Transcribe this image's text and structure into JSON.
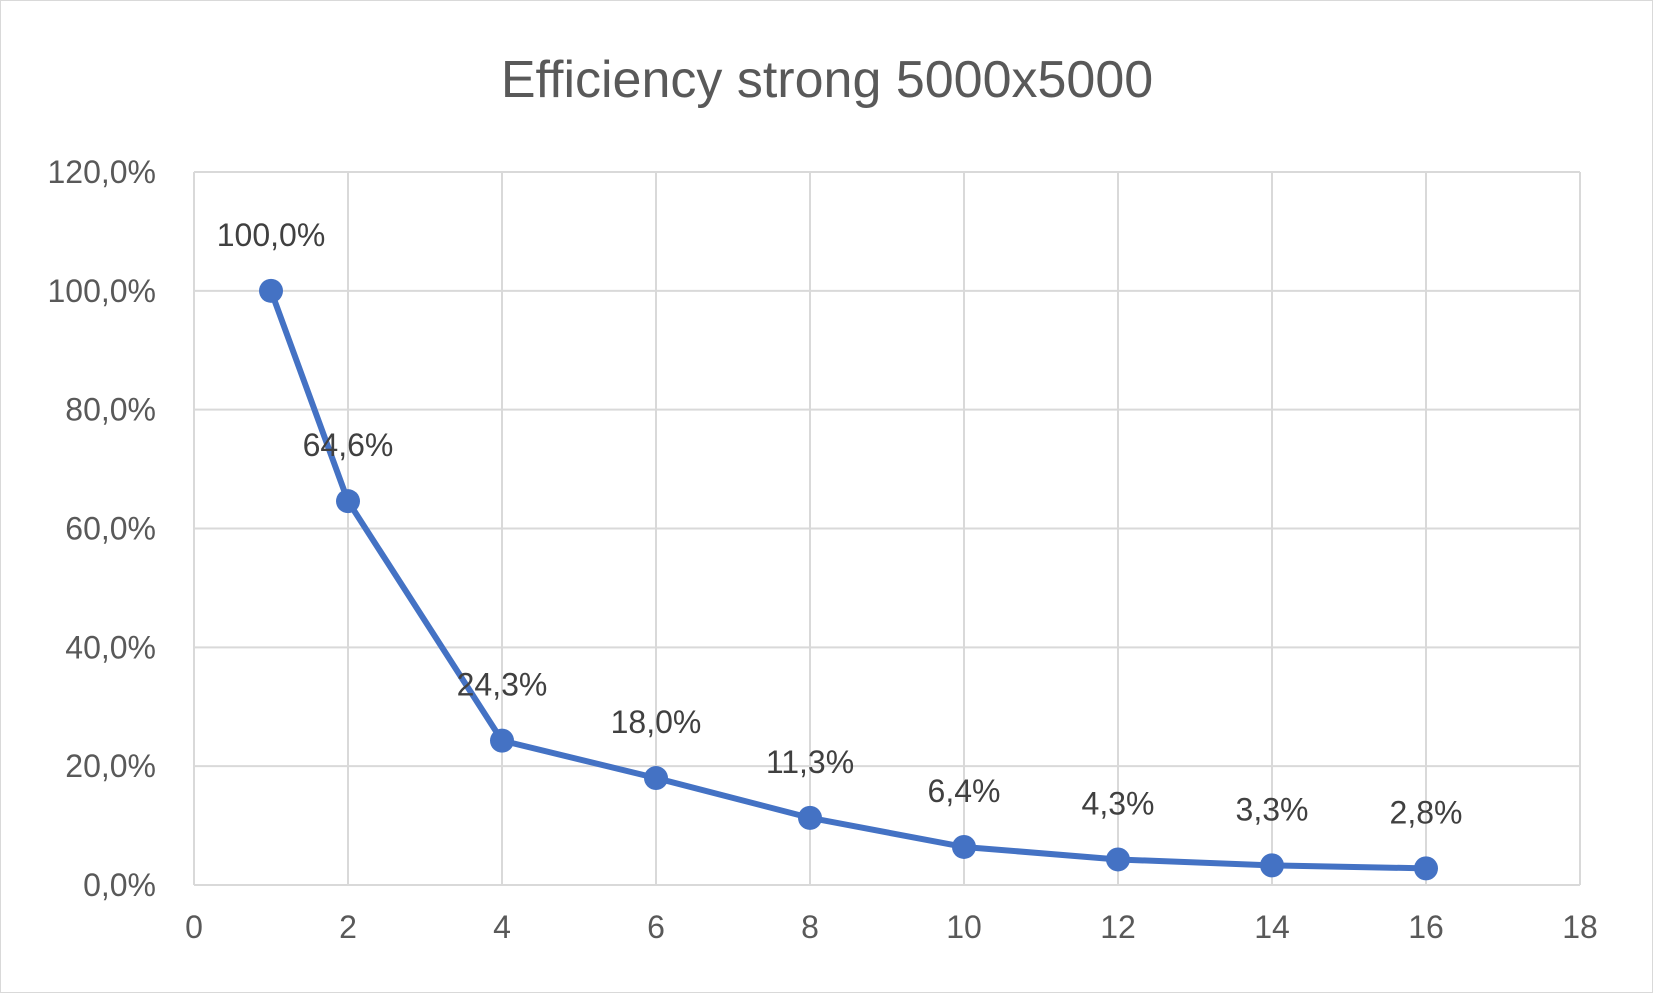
{
  "chart_data": {
    "type": "scatter",
    "title": "Efficiency strong 5000x5000",
    "xlabel": "",
    "ylabel": "",
    "xlim": [
      0,
      18
    ],
    "ylim": [
      0,
      120
    ],
    "x_ticks": [
      0,
      2,
      4,
      6,
      8,
      10,
      12,
      14,
      16,
      18
    ],
    "y_ticks": [
      0,
      20,
      40,
      60,
      80,
      100,
      120
    ],
    "x_tick_labels": [
      "0",
      "2",
      "4",
      "6",
      "8",
      "10",
      "12",
      "14",
      "16",
      "18"
    ],
    "y_tick_labels": [
      "0,0%",
      "20,0%",
      "40,0%",
      "60,0%",
      "80,0%",
      "100,0%",
      "120,0%"
    ],
    "grid": true,
    "legend": "none",
    "series": [
      {
        "color": "#4472c4",
        "mode": "lines+markers",
        "x": [
          1,
          2,
          4,
          6,
          8,
          10,
          12,
          14,
          16
        ],
        "y": [
          100.0,
          64.6,
          24.3,
          18.0,
          11.3,
          6.4,
          4.3,
          3.3,
          2.8
        ],
        "labels": [
          "100,0%",
          "64,6%",
          "24,3%",
          "18,0%",
          "11,3%",
          "6,4%",
          "4,3%",
          "3,3%",
          "2,8%"
        ]
      }
    ],
    "gridline_color": "#d9d9d9",
    "text_color": "#595959"
  }
}
